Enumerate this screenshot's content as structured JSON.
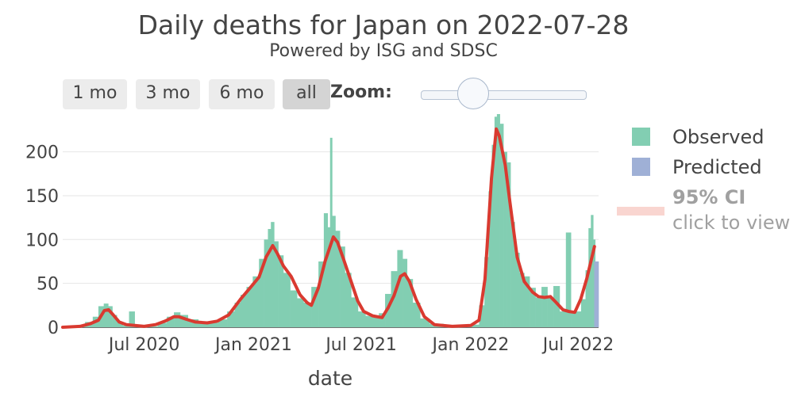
{
  "header": {
    "title": "Daily deaths for Japan on 2022-07-28",
    "subtitle": "Powered by ISG and SDSC"
  },
  "zoom": {
    "buttons": [
      "1 mo",
      "3 mo",
      "6 mo",
      "all"
    ],
    "active": "all",
    "label": "Zoom:"
  },
  "legend": {
    "observed": "Observed",
    "predicted": "Predicted",
    "ci": "95% CI",
    "ci_hint": "click to view"
  },
  "colors": {
    "observed": "#82ceb2",
    "predicted": "#9fb0d6",
    "fit": "#d93a30",
    "ci": "#f9d5d0",
    "grid": "#e6e6e6"
  },
  "chart_data": {
    "type": "bar",
    "title": "Daily deaths for Japan on 2022-07-28",
    "xlabel": "date",
    "ylabel": "",
    "xlim": [
      "2020-02-15",
      "2022-08-04"
    ],
    "ylim": [
      0,
      243
    ],
    "yticks": [
      0,
      50,
      100,
      150,
      200
    ],
    "xticks": [
      {
        "date": "2020-07-01",
        "label": "Jul 2020"
      },
      {
        "date": "2021-01-01",
        "label": "Jan 2021"
      },
      {
        "date": "2021-07-01",
        "label": "Jul 2021"
      },
      {
        "date": "2022-01-01",
        "label": "Jan 2022"
      },
      {
        "date": "2022-07-01",
        "label": "Jul 2022"
      }
    ],
    "grid": true,
    "legend_position": "right",
    "series": [
      {
        "name": "Observed",
        "kind": "bar",
        "points": [
          [
            "2020-02-15",
            0
          ],
          [
            "2020-03-01",
            1
          ],
          [
            "2020-03-15",
            2
          ],
          [
            "2020-04-01",
            6
          ],
          [
            "2020-04-10",
            12
          ],
          [
            "2020-04-20",
            24
          ],
          [
            "2020-04-28",
            27
          ],
          [
            "2020-05-05",
            24
          ],
          [
            "2020-05-12",
            14
          ],
          [
            "2020-05-20",
            6
          ],
          [
            "2020-06-01",
            2
          ],
          [
            "2020-06-10",
            18
          ],
          [
            "2020-06-20",
            1
          ],
          [
            "2020-07-01",
            1
          ],
          [
            "2020-07-15",
            1
          ],
          [
            "2020-08-01",
            5
          ],
          [
            "2020-08-15",
            12
          ],
          [
            "2020-08-25",
            17
          ],
          [
            "2020-09-05",
            14
          ],
          [
            "2020-09-20",
            9
          ],
          [
            "2020-10-10",
            6
          ],
          [
            "2020-10-25",
            5
          ],
          [
            "2020-11-10",
            9
          ],
          [
            "2020-11-25",
            18
          ],
          [
            "2020-12-05",
            28
          ],
          [
            "2020-12-15",
            37
          ],
          [
            "2020-12-25",
            46
          ],
          [
            "2021-01-05",
            58
          ],
          [
            "2021-01-15",
            78
          ],
          [
            "2021-01-22",
            100
          ],
          [
            "2021-01-28",
            112
          ],
          [
            "2021-02-01",
            120
          ],
          [
            "2021-02-08",
            98
          ],
          [
            "2021-02-15",
            82
          ],
          [
            "2021-02-25",
            62
          ],
          [
            "2021-03-10",
            42
          ],
          [
            "2021-03-20",
            33
          ],
          [
            "2021-04-01",
            28
          ],
          [
            "2021-04-15",
            46
          ],
          [
            "2021-04-25",
            75
          ],
          [
            "2021-05-03",
            130
          ],
          [
            "2021-05-08",
            114
          ],
          [
            "2021-05-11",
            216
          ],
          [
            "2021-05-15",
            127
          ],
          [
            "2021-05-22",
            110
          ],
          [
            "2021-05-30",
            92
          ],
          [
            "2021-06-08",
            62
          ],
          [
            "2021-06-20",
            34
          ],
          [
            "2021-07-01",
            18
          ],
          [
            "2021-07-15",
            13
          ],
          [
            "2021-07-25",
            11
          ],
          [
            "2021-08-05",
            16
          ],
          [
            "2021-08-15",
            38
          ],
          [
            "2021-08-25",
            64
          ],
          [
            "2021-09-05",
            88
          ],
          [
            "2021-09-12",
            78
          ],
          [
            "2021-09-20",
            55
          ],
          [
            "2021-10-01",
            28
          ],
          [
            "2021-10-15",
            10
          ],
          [
            "2021-11-01",
            4
          ],
          [
            "2021-12-01",
            2
          ],
          [
            "2021-12-20",
            2
          ],
          [
            "2022-01-10",
            3
          ],
          [
            "2022-01-20",
            25
          ],
          [
            "2022-01-28",
            80
          ],
          [
            "2022-02-03",
            155
          ],
          [
            "2022-02-08",
            208
          ],
          [
            "2022-02-12",
            240
          ],
          [
            "2022-02-16",
            243
          ],
          [
            "2022-02-22",
            232
          ],
          [
            "2022-02-28",
            200
          ],
          [
            "2022-03-06",
            188
          ],
          [
            "2022-03-12",
            120
          ],
          [
            "2022-03-20",
            85
          ],
          [
            "2022-03-28",
            62
          ],
          [
            "2022-04-05",
            58
          ],
          [
            "2022-04-15",
            45
          ],
          [
            "2022-04-25",
            34
          ],
          [
            "2022-05-05",
            46
          ],
          [
            "2022-05-15",
            34
          ],
          [
            "2022-05-25",
            47
          ],
          [
            "2022-06-05",
            18
          ],
          [
            "2022-06-15",
            108
          ],
          [
            "2022-06-22",
            16
          ],
          [
            "2022-07-01",
            18
          ],
          [
            "2022-07-10",
            32
          ],
          [
            "2022-07-16",
            65
          ],
          [
            "2022-07-20",
            113
          ],
          [
            "2022-07-24",
            128
          ],
          [
            "2022-07-28",
            100
          ]
        ]
      },
      {
        "name": "Predicted",
        "kind": "bar",
        "points": [
          [
            "2022-07-29",
            75
          ],
          [
            "2022-08-01",
            75
          ],
          [
            "2022-08-04",
            75
          ]
        ]
      },
      {
        "name": "fit",
        "kind": "line",
        "points": [
          [
            "2020-02-15",
            0
          ],
          [
            "2020-03-15",
            1
          ],
          [
            "2020-04-01",
            4
          ],
          [
            "2020-04-15",
            8
          ],
          [
            "2020-04-25",
            19
          ],
          [
            "2020-05-02",
            20
          ],
          [
            "2020-05-10",
            14
          ],
          [
            "2020-05-20",
            6
          ],
          [
            "2020-06-01",
            3
          ],
          [
            "2020-06-15",
            2
          ],
          [
            "2020-07-01",
            1
          ],
          [
            "2020-07-20",
            3
          ],
          [
            "2020-08-05",
            7
          ],
          [
            "2020-08-20",
            12
          ],
          [
            "2020-08-28",
            12
          ],
          [
            "2020-09-10",
            9
          ],
          [
            "2020-09-25",
            6
          ],
          [
            "2020-10-15",
            5
          ],
          [
            "2020-11-01",
            7
          ],
          [
            "2020-11-20",
            14
          ],
          [
            "2020-12-10",
            32
          ],
          [
            "2020-12-25",
            44
          ],
          [
            "2021-01-10",
            57
          ],
          [
            "2021-01-22",
            80
          ],
          [
            "2021-02-02",
            93
          ],
          [
            "2021-02-10",
            84
          ],
          [
            "2021-02-20",
            70
          ],
          [
            "2021-03-05",
            58
          ],
          [
            "2021-03-20",
            37
          ],
          [
            "2021-04-01",
            28
          ],
          [
            "2021-04-08",
            25
          ],
          [
            "2021-04-20",
            45
          ],
          [
            "2021-05-01",
            75
          ],
          [
            "2021-05-15",
            103
          ],
          [
            "2021-05-22",
            97
          ],
          [
            "2021-06-01",
            78
          ],
          [
            "2021-06-15",
            50
          ],
          [
            "2021-06-25",
            30
          ],
          [
            "2021-07-05",
            18
          ],
          [
            "2021-07-20",
            13
          ],
          [
            "2021-08-05",
            11
          ],
          [
            "2021-08-15",
            22
          ],
          [
            "2021-08-25",
            36
          ],
          [
            "2021-09-05",
            58
          ],
          [
            "2021-09-12",
            61
          ],
          [
            "2021-09-20",
            52
          ],
          [
            "2021-10-01",
            32
          ],
          [
            "2021-10-15",
            12
          ],
          [
            "2021-11-01",
            3
          ],
          [
            "2021-12-01",
            1
          ],
          [
            "2022-01-01",
            2
          ],
          [
            "2022-01-15",
            8
          ],
          [
            "2022-01-25",
            55
          ],
          [
            "2022-02-05",
            170
          ],
          [
            "2022-02-13",
            226
          ],
          [
            "2022-02-18",
            218
          ],
          [
            "2022-02-28",
            185
          ],
          [
            "2022-03-08",
            142
          ],
          [
            "2022-03-20",
            80
          ],
          [
            "2022-04-01",
            52
          ],
          [
            "2022-04-15",
            40
          ],
          [
            "2022-04-25",
            35
          ],
          [
            "2022-05-05",
            34
          ],
          [
            "2022-05-15",
            35
          ],
          [
            "2022-05-25",
            28
          ],
          [
            "2022-06-05",
            20
          ],
          [
            "2022-06-15",
            18
          ],
          [
            "2022-06-25",
            17
          ],
          [
            "2022-07-05",
            32
          ],
          [
            "2022-07-15",
            55
          ],
          [
            "2022-07-28",
            92
          ]
        ]
      }
    ]
  }
}
